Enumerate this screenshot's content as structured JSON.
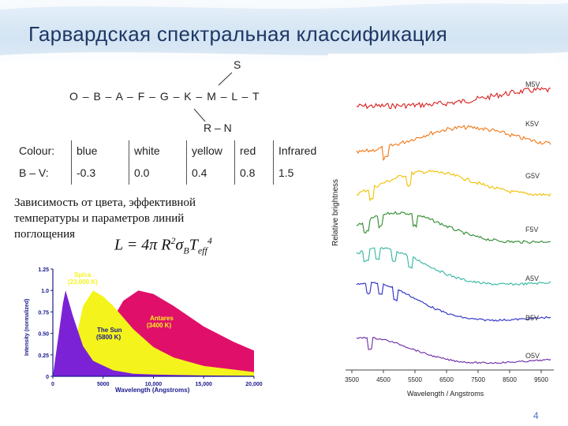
{
  "slide": {
    "title": "Гарвардская спектральная классификация",
    "page_number": "4"
  },
  "classification": {
    "s_branch": "S",
    "sequence": "O – B – A – F – G – K – M – L – T",
    "rn_branch": "R – N"
  },
  "color_table": {
    "rows": [
      [
        "Colour:",
        "blue",
        "white",
        "yellow",
        "red",
        "Infrared"
      ],
      [
        "B – V:",
        "-0.3",
        "0.0",
        "0.4",
        "0.8",
        "1.5"
      ]
    ]
  },
  "caption": {
    "lines": [
      "Зависимость от цвета, эффективной",
      "температуры и параметров линий",
      "поглощения"
    ]
  },
  "formula": {
    "text": "L = 4π R²σ_B T_eff⁴"
  },
  "blackbody_chart": {
    "ylabel": "Intensity (normalized)",
    "xlabel": "Wavelength (Angstroms)",
    "y_ticks": [
      "0",
      "0.25",
      "0.50",
      "0.75",
      "1.0",
      "1.25"
    ],
    "x_ticks": [
      "0",
      "5000",
      "10,000",
      "15,000",
      "20,000"
    ],
    "labels": {
      "spica": [
        "Spica",
        "(23,000 K)"
      ],
      "sun": [
        "The Sun",
        "(5800 K)"
      ],
      "antares": [
        "Antares",
        "(3400 K)"
      ]
    },
    "colors": {
      "spica": "#7b22d6",
      "sun": "#f4f41c",
      "antares": "#e0106a",
      "axes": "#1a1a8c"
    }
  },
  "chart_data": [
    {
      "type": "area",
      "ylabel": "Intensity (normalized)",
      "xlabel": "Wavelength (Angstroms)",
      "xlim": [
        0,
        20000
      ],
      "ylim": [
        0,
        1.25
      ],
      "series": [
        {
          "name": "Spica (23,000 K)",
          "x": [
            0,
            1000,
            1260,
            2000,
            3000,
            4000,
            6000,
            8000,
            10000,
            15000,
            20000
          ],
          "values": [
            0,
            0.85,
            1.0,
            0.7,
            0.35,
            0.18,
            0.07,
            0.03,
            0.02,
            0.01,
            0.005
          ]
        },
        {
          "name": "The Sun (5800 K)",
          "x": [
            0,
            2000,
            3000,
            4000,
            5000,
            6000,
            8000,
            10000,
            12000,
            15000,
            20000
          ],
          "values": [
            0,
            0.28,
            0.82,
            1.0,
            0.93,
            0.82,
            0.55,
            0.34,
            0.22,
            0.12,
            0.05
          ]
        },
        {
          "name": "Antares (3400 K)",
          "x": [
            0,
            3000,
            5000,
            7000,
            8500,
            10000,
            12000,
            15000,
            18000,
            20000
          ],
          "values": [
            0,
            0.08,
            0.48,
            0.88,
            1.0,
            0.96,
            0.82,
            0.58,
            0.4,
            0.3
          ]
        }
      ]
    },
    {
      "type": "line",
      "ylabel": "Relative brightness",
      "xlabel": "Wavelength / Angstroms",
      "xlim": [
        3500,
        6900
      ],
      "x_ticks": [
        "3500",
        "4500",
        "5500",
        "6500",
        "7500",
        "8500",
        "9500"
      ],
      "series": [
        {
          "name": "M5V",
          "color": "#d81e1e"
        },
        {
          "name": "K5V",
          "color": "#f07818"
        },
        {
          "name": "G5V",
          "color": "#f0c000"
        },
        {
          "name": "F5V",
          "color": "#2c8a2c"
        },
        {
          "name": "A5V",
          "color": "#30b6a0"
        },
        {
          "name": "B5V",
          "color": "#2a2ac8"
        },
        {
          "name": "O5V",
          "color": "#6a2aa8"
        }
      ]
    }
  ]
}
